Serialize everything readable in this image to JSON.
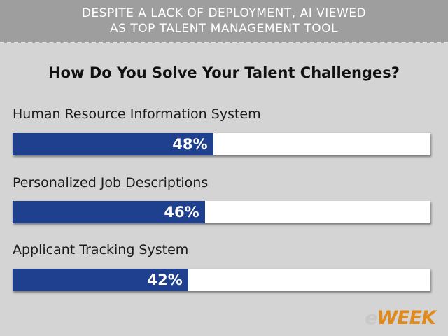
{
  "header": {
    "line1": "DESPITE A LACK OF DEPLOYMENT, AI VIEWED",
    "line2": "AS TOP TALENT MANAGEMENT TOOL"
  },
  "logo": {
    "e": "e",
    "week": "WEEK"
  },
  "colors": {
    "bar": "#1f3f8f",
    "track": "#ffffff",
    "header": "#9e9e9e",
    "background": "#d4d4d4"
  },
  "chart_data": {
    "type": "bar",
    "orientation": "horizontal",
    "title": "How Do You Solve Your Talent Challenges?",
    "categories": [
      "Human Resource Information System",
      "Personalized Job Descriptions",
      "Applicant Tracking System"
    ],
    "values": [
      48,
      46,
      42
    ],
    "value_labels": [
      "48%",
      "46%",
      "42%"
    ],
    "xlim": [
      0,
      100
    ],
    "unit": "%"
  }
}
